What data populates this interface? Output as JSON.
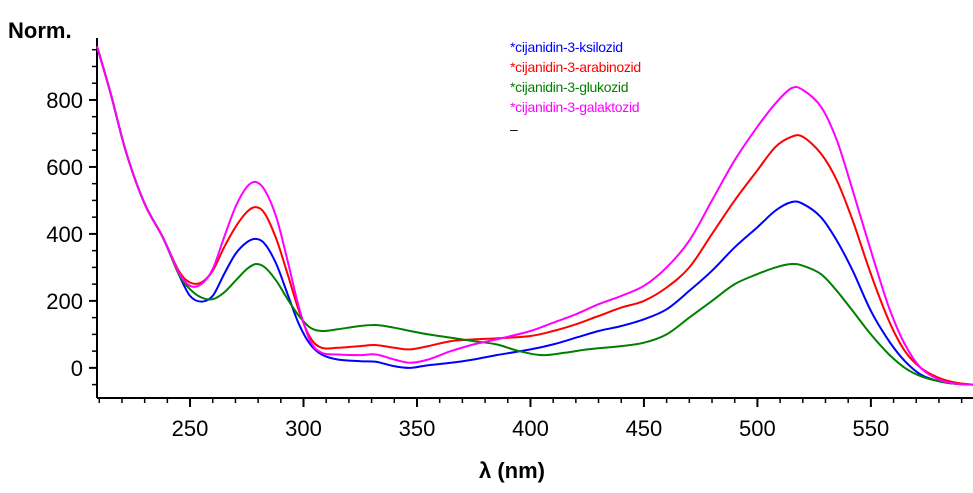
{
  "chart_data": {
    "type": "line",
    "title": "",
    "xlabel": "λ (nm)",
    "ylabel": "Norm.",
    "xlim": [
      209,
      595
    ],
    "ylim": [
      -90,
      985
    ],
    "xticks": [
      250,
      300,
      350,
      400,
      450,
      500,
      550
    ],
    "yticks": [
      0,
      200,
      400,
      600,
      800
    ],
    "grid": false,
    "legend_position": "top-center",
    "series": [
      {
        "name": "*cijanidin-3-ksilozid",
        "color": "#0000ff",
        "points": [
          [
            209,
            960
          ],
          [
            215,
            820
          ],
          [
            222,
            640
          ],
          [
            230,
            490
          ],
          [
            238,
            390
          ],
          [
            245,
            280
          ],
          [
            250,
            215
          ],
          [
            255,
            198
          ],
          [
            260,
            215
          ],
          [
            265,
            280
          ],
          [
            270,
            340
          ],
          [
            275,
            375
          ],
          [
            279,
            385
          ],
          [
            283,
            370
          ],
          [
            288,
            310
          ],
          [
            293,
            220
          ],
          [
            298,
            130
          ],
          [
            303,
            70
          ],
          [
            308,
            40
          ],
          [
            315,
            25
          ],
          [
            325,
            20
          ],
          [
            332,
            18
          ],
          [
            340,
            5
          ],
          [
            347,
            0
          ],
          [
            355,
            8
          ],
          [
            365,
            15
          ],
          [
            375,
            25
          ],
          [
            385,
            38
          ],
          [
            400,
            55
          ],
          [
            410,
            70
          ],
          [
            420,
            90
          ],
          [
            430,
            110
          ],
          [
            440,
            125
          ],
          [
            450,
            145
          ],
          [
            460,
            175
          ],
          [
            470,
            230
          ],
          [
            480,
            290
          ],
          [
            490,
            360
          ],
          [
            500,
            420
          ],
          [
            508,
            470
          ],
          [
            515,
            495
          ],
          [
            520,
            490
          ],
          [
            528,
            450
          ],
          [
            535,
            380
          ],
          [
            542,
            290
          ],
          [
            550,
            170
          ],
          [
            558,
            80
          ],
          [
            565,
            20
          ],
          [
            572,
            -20
          ],
          [
            580,
            -40
          ],
          [
            588,
            -48
          ],
          [
            595,
            -50
          ]
        ]
      },
      {
        "name": "*cijanidin-3-arabinozid",
        "color": "#ff0000",
        "points": [
          [
            209,
            960
          ],
          [
            215,
            820
          ],
          [
            222,
            640
          ],
          [
            230,
            490
          ],
          [
            238,
            390
          ],
          [
            245,
            290
          ],
          [
            250,
            255
          ],
          [
            255,
            255
          ],
          [
            260,
            290
          ],
          [
            265,
            360
          ],
          [
            270,
            420
          ],
          [
            275,
            465
          ],
          [
            279,
            480
          ],
          [
            283,
            460
          ],
          [
            288,
            385
          ],
          [
            293,
            280
          ],
          [
            298,
            170
          ],
          [
            303,
            90
          ],
          [
            308,
            60
          ],
          [
            315,
            60
          ],
          [
            325,
            65
          ],
          [
            332,
            68
          ],
          [
            340,
            60
          ],
          [
            347,
            55
          ],
          [
            355,
            65
          ],
          [
            365,
            80
          ],
          [
            375,
            85
          ],
          [
            385,
            88
          ],
          [
            400,
            95
          ],
          [
            410,
            110
          ],
          [
            420,
            130
          ],
          [
            430,
            155
          ],
          [
            440,
            180
          ],
          [
            450,
            200
          ],
          [
            460,
            240
          ],
          [
            470,
            300
          ],
          [
            480,
            400
          ],
          [
            490,
            500
          ],
          [
            500,
            590
          ],
          [
            508,
            660
          ],
          [
            515,
            690
          ],
          [
            520,
            690
          ],
          [
            528,
            640
          ],
          [
            535,
            560
          ],
          [
            542,
            440
          ],
          [
            550,
            280
          ],
          [
            558,
            140
          ],
          [
            565,
            50
          ],
          [
            572,
            0
          ],
          [
            580,
            -30
          ],
          [
            588,
            -45
          ],
          [
            595,
            -50
          ]
        ]
      },
      {
        "name": "*cijanidin-3-glukozid",
        "color": "#008000",
        "points": [
          [
            209,
            960
          ],
          [
            215,
            820
          ],
          [
            222,
            640
          ],
          [
            230,
            490
          ],
          [
            238,
            390
          ],
          [
            245,
            280
          ],
          [
            250,
            235
          ],
          [
            255,
            210
          ],
          [
            260,
            205
          ],
          [
            265,
            225
          ],
          [
            270,
            260
          ],
          [
            275,
            295
          ],
          [
            279,
            310
          ],
          [
            283,
            300
          ],
          [
            288,
            260
          ],
          [
            293,
            205
          ],
          [
            298,
            155
          ],
          [
            303,
            120
          ],
          [
            308,
            110
          ],
          [
            315,
            115
          ],
          [
            325,
            125
          ],
          [
            332,
            128
          ],
          [
            340,
            120
          ],
          [
            347,
            110
          ],
          [
            355,
            100
          ],
          [
            365,
            90
          ],
          [
            375,
            80
          ],
          [
            385,
            70
          ],
          [
            395,
            50
          ],
          [
            405,
            38
          ],
          [
            415,
            45
          ],
          [
            425,
            55
          ],
          [
            440,
            65
          ],
          [
            450,
            75
          ],
          [
            460,
            100
          ],
          [
            470,
            150
          ],
          [
            480,
            200
          ],
          [
            490,
            250
          ],
          [
            500,
            280
          ],
          [
            508,
            300
          ],
          [
            515,
            310
          ],
          [
            520,
            305
          ],
          [
            528,
            280
          ],
          [
            535,
            230
          ],
          [
            542,
            170
          ],
          [
            550,
            100
          ],
          [
            558,
            40
          ],
          [
            565,
            0
          ],
          [
            572,
            -25
          ],
          [
            580,
            -40
          ],
          [
            588,
            -48
          ],
          [
            595,
            -50
          ]
        ]
      },
      {
        "name": "*cijanidin-3-galaktozid",
        "color": "#ff00ff",
        "points": [
          [
            209,
            960
          ],
          [
            215,
            820
          ],
          [
            222,
            640
          ],
          [
            230,
            490
          ],
          [
            238,
            390
          ],
          [
            245,
            285
          ],
          [
            250,
            245
          ],
          [
            255,
            250
          ],
          [
            260,
            295
          ],
          [
            265,
            390
          ],
          [
            270,
            480
          ],
          [
            275,
            540
          ],
          [
            279,
            555
          ],
          [
            283,
            530
          ],
          [
            288,
            450
          ],
          [
            293,
            320
          ],
          [
            298,
            180
          ],
          [
            303,
            80
          ],
          [
            308,
            45
          ],
          [
            315,
            40
          ],
          [
            325,
            38
          ],
          [
            332,
            40
          ],
          [
            340,
            25
          ],
          [
            347,
            15
          ],
          [
            355,
            25
          ],
          [
            365,
            50
          ],
          [
            375,
            70
          ],
          [
            385,
            85
          ],
          [
            400,
            110
          ],
          [
            410,
            135
          ],
          [
            420,
            160
          ],
          [
            430,
            190
          ],
          [
            440,
            215
          ],
          [
            450,
            245
          ],
          [
            460,
            300
          ],
          [
            470,
            380
          ],
          [
            480,
            500
          ],
          [
            490,
            620
          ],
          [
            500,
            720
          ],
          [
            508,
            790
          ],
          [
            515,
            835
          ],
          [
            520,
            830
          ],
          [
            528,
            780
          ],
          [
            535,
            680
          ],
          [
            542,
            530
          ],
          [
            550,
            350
          ],
          [
            558,
            180
          ],
          [
            565,
            70
          ],
          [
            572,
            0
          ],
          [
            580,
            -35
          ],
          [
            588,
            -48
          ],
          [
            595,
            -50
          ]
        ]
      }
    ],
    "legend_mark": "–"
  }
}
